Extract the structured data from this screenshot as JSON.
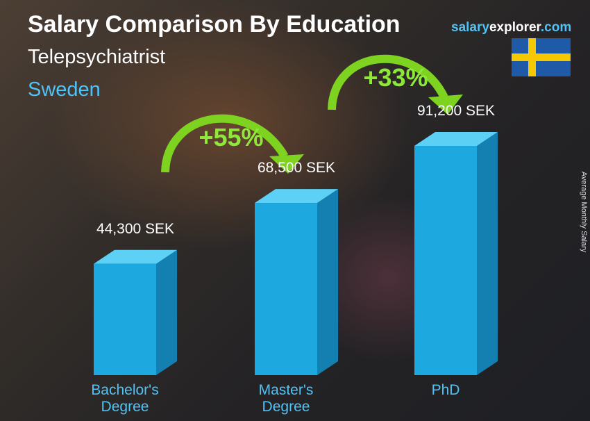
{
  "chart_data": {
    "type": "bar",
    "title": "Salary Comparison By Education",
    "subtitle": "Telepsychiatrist",
    "country": "Sweden",
    "brand": [
      "salary",
      "explorer",
      ".com"
    ],
    "y_label": "Average Monthly Salary",
    "categories": [
      "Bachelor's Degree",
      "Master's Degree",
      "PhD"
    ],
    "values": [
      44300,
      68500,
      91200
    ],
    "value_labels": [
      "44,300 SEK",
      "68,500 SEK",
      "91,200 SEK"
    ],
    "annotations": [
      "+55%",
      "+33%"
    ],
    "color": "#1ea8e0"
  }
}
